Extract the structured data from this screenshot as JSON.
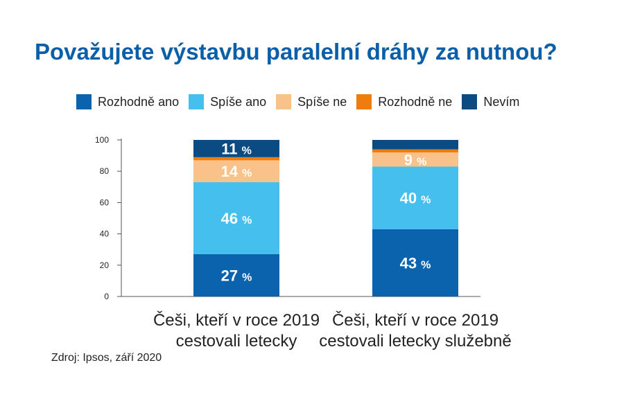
{
  "title": "Považujete výstavbu paralelní dráhy za nutnou?",
  "source": "Zdroj: Ipsos, září 2020",
  "legend": [
    {
      "label": "Rozhodně ano",
      "color": "#0a63ac"
    },
    {
      "label": "Spíše ano",
      "color": "#44bfee"
    },
    {
      "label": "Spíše ne",
      "color": "#f8c28a"
    },
    {
      "label": "Rozhodně ne",
      "color": "#ee7d0e"
    },
    {
      "label": "Nevím",
      "color": "#0c4a82"
    }
  ],
  "chart_data": {
    "type": "bar",
    "stacked": true,
    "title": "Považujete výstavbu paralelní dráhy za nutnou?",
    "ylim": [
      0,
      100
    ],
    "yticks": [
      0,
      20,
      40,
      60,
      80,
      100
    ],
    "categories": [
      [
        "Češi, kteří v roce 2019",
        "cestovali letecky"
      ],
      [
        "Češi, kteří v roce 2019",
        "cestovali letecky služebně"
      ]
    ],
    "series": [
      {
        "name": "Rozhodně ano",
        "color": "#0a63ac",
        "values": [
          27,
          43
        ],
        "labels": [
          "27 %",
          "43 %"
        ]
      },
      {
        "name": "Spíše ano",
        "color": "#44bfee",
        "values": [
          46,
          40
        ],
        "labels": [
          "46 %",
          "40 %"
        ]
      },
      {
        "name": "Spíše ne",
        "color": "#f8c28a",
        "values": [
          14,
          9
        ],
        "labels": [
          "14 %",
          "9 %"
        ]
      },
      {
        "name": "Rozhodně ne",
        "color": "#ee7d0e",
        "values": [
          2,
          2
        ],
        "labels": [
          "",
          ""
        ]
      },
      {
        "name": "Nevím",
        "color": "#0c4a82",
        "values": [
          11,
          6
        ],
        "labels": [
          "11 %",
          ""
        ]
      }
    ],
    "legend_position": "top",
    "grid": false
  }
}
